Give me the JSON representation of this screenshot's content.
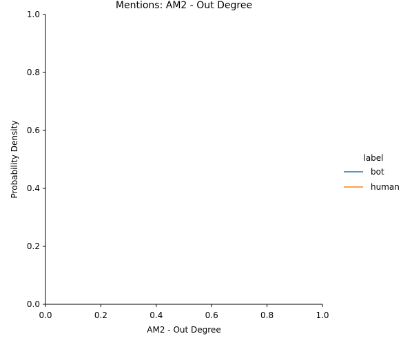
{
  "chart_data": {
    "type": "line",
    "title": "Mentions: AM2 - Out Degree",
    "xlabel": "AM2 - Out Degree",
    "ylabel": "Probability Density",
    "xlim": [
      0.0,
      1.0
    ],
    "ylim": [
      0.0,
      1.0
    ],
    "x_ticks": [
      "0.0",
      "0.2",
      "0.4",
      "0.6",
      "0.8",
      "1.0"
    ],
    "y_ticks": [
      "0.0",
      "0.2",
      "0.4",
      "0.6",
      "0.8",
      "1.0"
    ],
    "grid": false,
    "legend": {
      "title": "label",
      "placement": "right"
    },
    "series": [
      {
        "name": "bot",
        "color": "#1f77b4",
        "x": [],
        "y": []
      },
      {
        "name": "human",
        "color": "#ff7f0e",
        "x": [],
        "y": []
      }
    ]
  }
}
